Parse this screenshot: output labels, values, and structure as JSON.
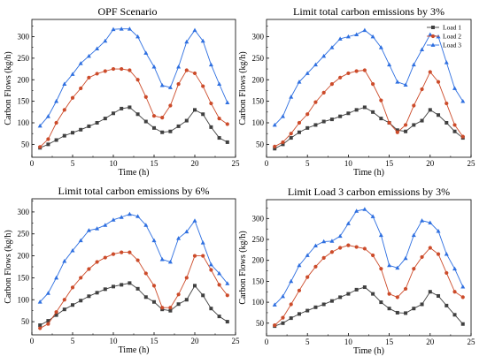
{
  "figure": {
    "legend_position": "top-right",
    "colors": {
      "Load 1": "#404040",
      "Load 2": "#cc4b2a",
      "Load 3": "#2e6fe0"
    },
    "markers": {
      "Load 1": "square",
      "Load 2": "circle",
      "Load 3": "triangle"
    }
  },
  "chart_data": [
    {
      "type": "line",
      "title": "OPF Scenario",
      "xlabel": "Time (h)",
      "ylabel": "Carbon Flows (kg/h)",
      "xlim": [
        0,
        25
      ],
      "ylim": [
        20,
        340
      ],
      "xticks": [
        0,
        5,
        10,
        15,
        20,
        25
      ],
      "yticks": [
        50,
        100,
        150,
        200,
        250,
        300
      ],
      "grid": false,
      "x": [
        1,
        2,
        3,
        4,
        5,
        6,
        7,
        8,
        9,
        10,
        11,
        12,
        13,
        14,
        15,
        16,
        17,
        18,
        19,
        20,
        21,
        22,
        23,
        24
      ],
      "series": [
        {
          "name": "Load 1",
          "values": [
            42,
            50,
            60,
            70,
            77,
            84,
            92,
            100,
            110,
            122,
            133,
            136,
            120,
            103,
            88,
            78,
            80,
            92,
            105,
            130,
            120,
            90,
            65,
            55
          ]
        },
        {
          "name": "Load 2",
          "values": [
            44,
            62,
            100,
            130,
            158,
            180,
            205,
            214,
            220,
            225,
            225,
            222,
            200,
            160,
            116,
            112,
            140,
            190,
            222,
            215,
            185,
            145,
            110,
            97
          ]
        },
        {
          "name": "Load 3",
          "values": [
            93,
            115,
            150,
            190,
            213,
            238,
            255,
            272,
            290,
            317,
            318,
            318,
            300,
            262,
            230,
            187,
            182,
            230,
            288,
            315,
            290,
            235,
            190,
            147
          ]
        }
      ]
    },
    {
      "type": "line",
      "title": "Limit total carbon emissions by 3%",
      "xlabel": "Time (h)",
      "ylabel": "Carbon Flows (kg/h)",
      "xlim": [
        0,
        25
      ],
      "ylim": [
        20,
        340
      ],
      "xticks": [
        0,
        5,
        10,
        15,
        20,
        25
      ],
      "yticks": [
        50,
        100,
        150,
        200,
        250,
        300
      ],
      "legend": [
        "Load 1",
        "Load 2",
        "Load 3"
      ],
      "grid": false,
      "x": [
        1,
        2,
        3,
        4,
        5,
        6,
        7,
        8,
        9,
        10,
        11,
        12,
        13,
        14,
        15,
        16,
        17,
        18,
        19,
        20,
        21,
        22,
        23,
        24
      ],
      "series": [
        {
          "name": "Load 1",
          "values": [
            40,
            50,
            65,
            78,
            88,
            95,
            103,
            108,
            115,
            122,
            130,
            136,
            125,
            110,
            100,
            83,
            80,
            95,
            105,
            130,
            118,
            100,
            80,
            65
          ]
        },
        {
          "name": "Load 2",
          "values": [
            45,
            55,
            75,
            100,
            120,
            148,
            170,
            190,
            205,
            215,
            220,
            222,
            190,
            152,
            100,
            78,
            95,
            140,
            178,
            218,
            195,
            145,
            95,
            68
          ]
        },
        {
          "name": "Load 3",
          "values": [
            95,
            115,
            160,
            195,
            215,
            235,
            255,
            275,
            295,
            300,
            305,
            315,
            300,
            275,
            235,
            195,
            188,
            235,
            270,
            305,
            300,
            240,
            180,
            150
          ]
        }
      ]
    },
    {
      "type": "line",
      "title": "Limit total carbon emissions by 6%",
      "xlabel": "Time (h)",
      "ylabel": "Carbon Flows (kg/h)",
      "xlim": [
        0,
        25
      ],
      "ylim": [
        20,
        330
      ],
      "xticks": [
        0,
        5,
        10,
        15,
        20,
        25
      ],
      "yticks": [
        50,
        100,
        150,
        200,
        250,
        300
      ],
      "grid": false,
      "x": [
        1,
        2,
        3,
        4,
        5,
        6,
        7,
        8,
        9,
        10,
        11,
        12,
        13,
        14,
        15,
        16,
        17,
        18,
        19,
        20,
        21,
        22,
        23,
        24
      ],
      "series": [
        {
          "name": "Load 1",
          "values": [
            42,
            52,
            65,
            78,
            88,
            98,
            108,
            116,
            124,
            130,
            134,
            138,
            125,
            106,
            95,
            78,
            75,
            90,
            100,
            132,
            110,
            80,
            62,
            50
          ]
        },
        {
          "name": "Load 2",
          "values": [
            35,
            45,
            72,
            100,
            128,
            150,
            170,
            186,
            196,
            204,
            208,
            208,
            190,
            160,
            132,
            82,
            82,
            112,
            150,
            200,
            200,
            168,
            134,
            110
          ]
        },
        {
          "name": "Load 3",
          "values": [
            95,
            115,
            150,
            188,
            212,
            235,
            258,
            262,
            270,
            282,
            288,
            295,
            290,
            270,
            235,
            192,
            186,
            240,
            255,
            280,
            230,
            180,
            160,
            137
          ]
        }
      ]
    },
    {
      "type": "line",
      "title": "Limit Load 3 carbon emissions by 3%",
      "xlabel": "Time (h)",
      "ylabel": "Carbon Flows (kg/h)",
      "xlim": [
        0,
        25
      ],
      "ylim": [
        20,
        345
      ],
      "xticks": [
        0,
        5,
        10,
        15,
        20,
        25
      ],
      "yticks": [
        50,
        100,
        150,
        200,
        250,
        300
      ],
      "grid": false,
      "x": [
        1,
        2,
        3,
        4,
        5,
        6,
        7,
        8,
        9,
        10,
        11,
        12,
        13,
        14,
        15,
        16,
        17,
        18,
        19,
        20,
        21,
        22,
        23,
        24
      ],
      "series": [
        {
          "name": "Load 1",
          "values": [
            43,
            50,
            62,
            72,
            80,
            88,
            95,
            103,
            112,
            120,
            130,
            136,
            120,
            100,
            85,
            75,
            74,
            85,
            95,
            125,
            115,
            92,
            70,
            48
          ]
        },
        {
          "name": "Load 2",
          "values": [
            45,
            63,
            95,
            128,
            160,
            185,
            206,
            220,
            230,
            236,
            232,
            228,
            212,
            180,
            120,
            112,
            132,
            180,
            208,
            230,
            215,
            170,
            125,
            112
          ]
        },
        {
          "name": "Load 3",
          "values": [
            94,
            114,
            150,
            188,
            212,
            235,
            245,
            246,
            258,
            288,
            318,
            322,
            305,
            260,
            188,
            182,
            205,
            260,
            295,
            290,
            270,
            215,
            180,
            137
          ]
        }
      ]
    }
  ]
}
